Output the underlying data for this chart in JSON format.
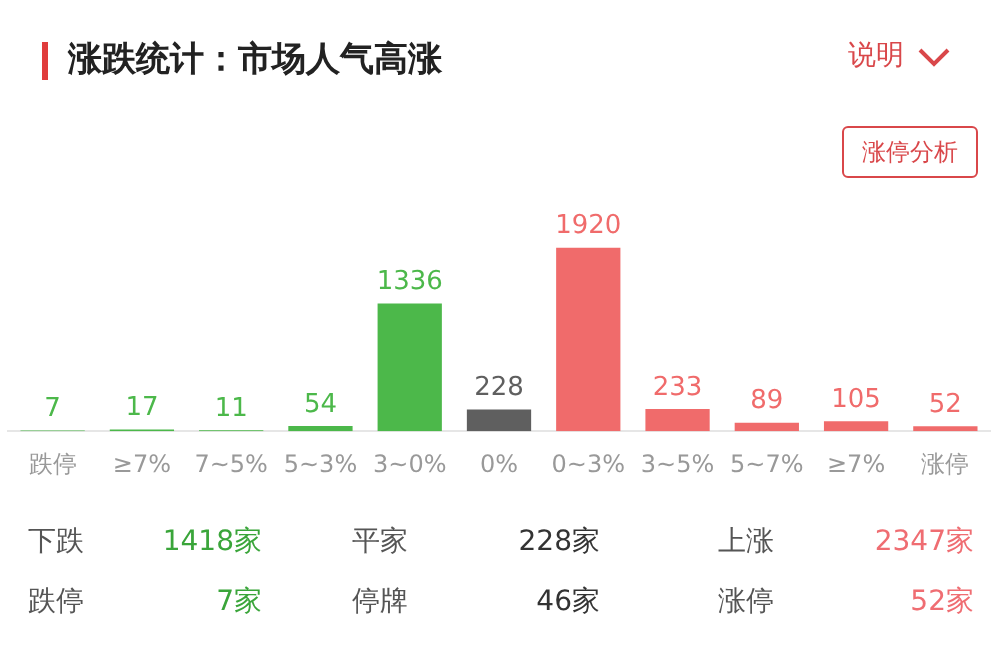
{
  "chart_data": {
    "type": "bar",
    "title": "涨跌统计：市场人气高涨",
    "categories": [
      "跌停",
      "≥7%",
      "7~5%",
      "5~3%",
      "3~0%",
      "0%",
      "0~3%",
      "3~5%",
      "5~7%",
      "≥7%",
      "涨停"
    ],
    "values": [
      7,
      17,
      11,
      54,
      1336,
      228,
      1920,
      233,
      89,
      105,
      52
    ],
    "colors": [
      "#4cb84a",
      "#4cb84a",
      "#4cb84a",
      "#4cb84a",
      "#4cb84a",
      "#5f5f5f",
      "#f06b6b",
      "#f06b6b",
      "#f06b6b",
      "#f06b6b",
      "#f06b6b"
    ],
    "data_labels": true,
    "grid": false,
    "legend": false,
    "tick_labels": "x",
    "annotations": [
      "说明",
      "涨停分析",
      "下跌",
      "1418家",
      "平家",
      "228家",
      "上涨",
      "2347家",
      "跌停",
      "7家",
      "停牌",
      "46家",
      "涨停",
      "52家"
    ]
  }
}
